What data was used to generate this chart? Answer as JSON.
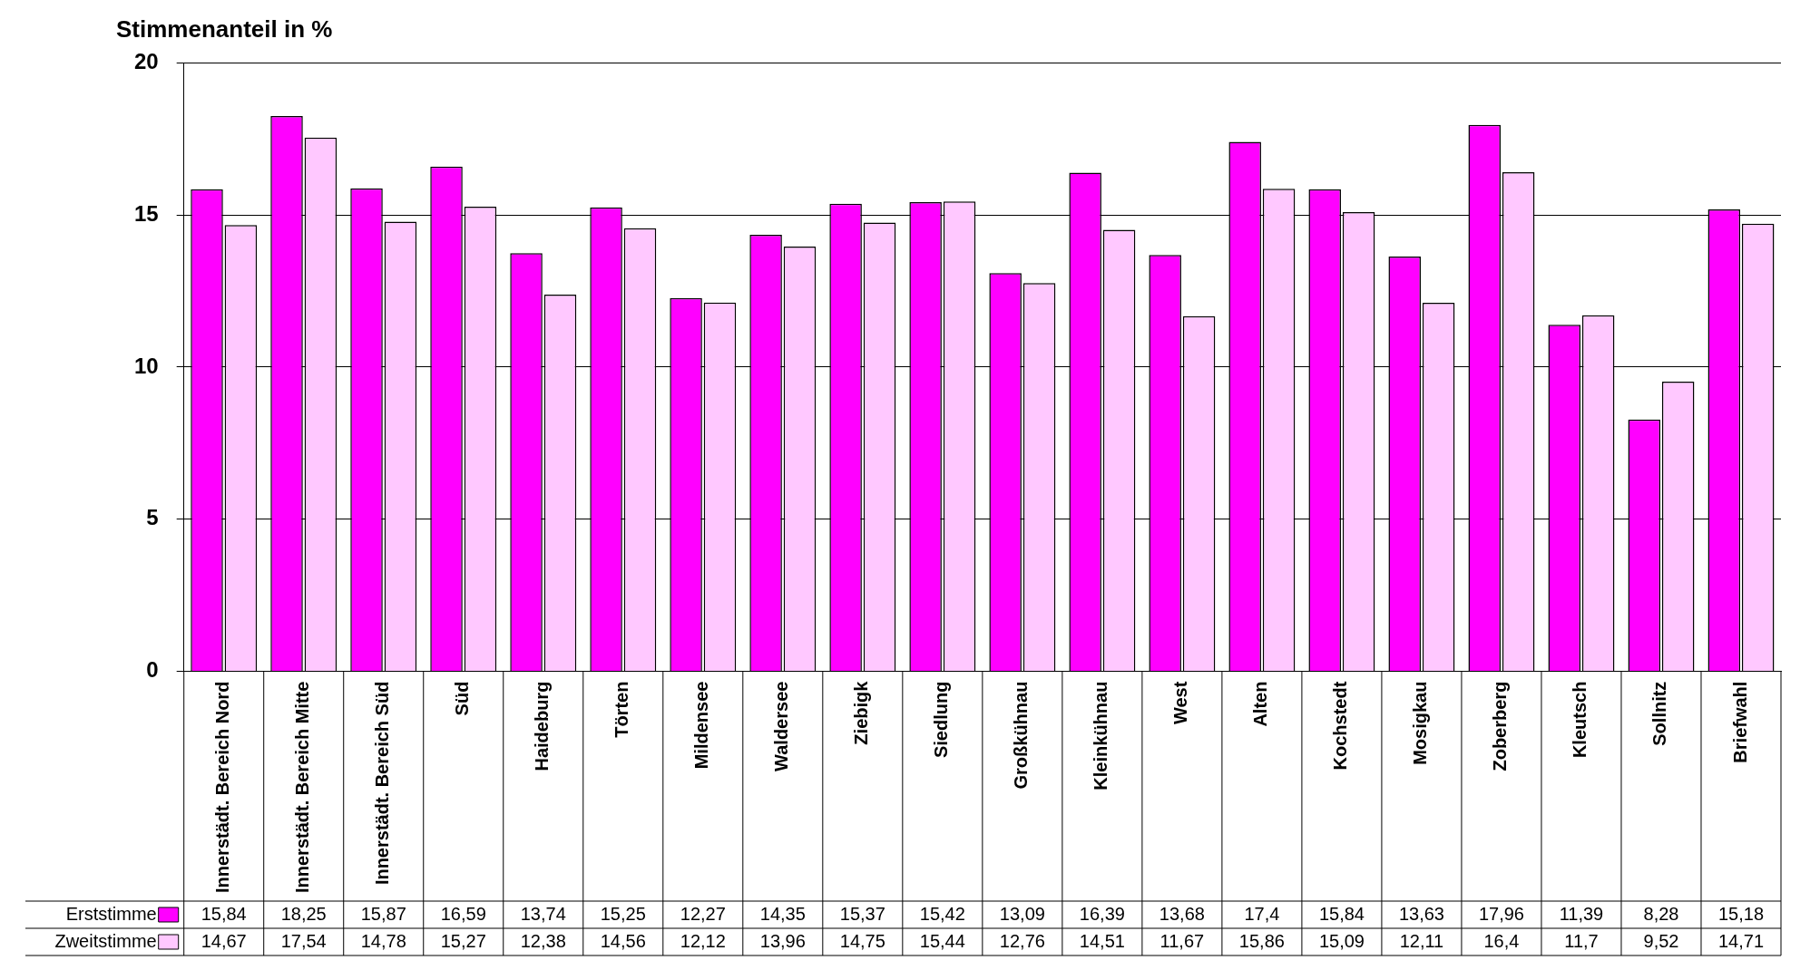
{
  "chart_data": {
    "type": "bar",
    "title": "Stimmenanteil in %",
    "categories": [
      "Innerstädt. Bereich Nord",
      "Innerstädt. Bereich Mitte",
      "Innerstädt. Bereich Süd",
      "Süd",
      "Haideburg",
      "Törten",
      "Mildensee",
      "Waldersee",
      "Ziebigk",
      "Siedlung",
      "Großkühnau",
      "Kleinkühnau",
      "West",
      "Alten",
      "Kochstedt",
      "Mosigkau",
      "Zoberberg",
      "Kleutsch",
      "Sollnitz",
      "Briefwahl"
    ],
    "series": [
      {
        "name": "Erststimme",
        "color": "#ff00ff",
        "values": [
          15.84,
          18.25,
          15.87,
          16.59,
          13.74,
          15.25,
          12.27,
          14.35,
          15.37,
          15.42,
          13.09,
          16.39,
          13.68,
          17.4,
          15.84,
          13.63,
          17.96,
          11.39,
          8.28,
          15.18
        ],
        "value_labels": [
          "15,84",
          "18,25",
          "15,87",
          "16,59",
          "13,74",
          "15,25",
          "12,27",
          "14,35",
          "15,37",
          "15,42",
          "13,09",
          "16,39",
          "13,68",
          "17,4",
          "15,84",
          "13,63",
          "17,96",
          "11,39",
          "8,28",
          "15,18"
        ]
      },
      {
        "name": "Zweitstimme",
        "color": "#ffc8ff",
        "values": [
          14.67,
          17.54,
          14.78,
          15.27,
          12.38,
          14.56,
          12.12,
          13.96,
          14.75,
          15.44,
          12.76,
          14.51,
          11.67,
          15.86,
          15.09,
          12.11,
          16.4,
          11.7,
          9.52,
          14.71
        ],
        "value_labels": [
          "14,67",
          "17,54",
          "14,78",
          "15,27",
          "12,38",
          "14,56",
          "12,12",
          "13,96",
          "14,75",
          "15,44",
          "12,76",
          "14,51",
          "11,67",
          "15,86",
          "15,09",
          "12,11",
          "16,4",
          "11,7",
          "9,52",
          "14,71"
        ]
      }
    ],
    "ylim": [
      0,
      20
    ],
    "yticks": [
      0,
      5,
      10,
      15,
      20
    ],
    "grid": "y",
    "legend": "bottom"
  }
}
